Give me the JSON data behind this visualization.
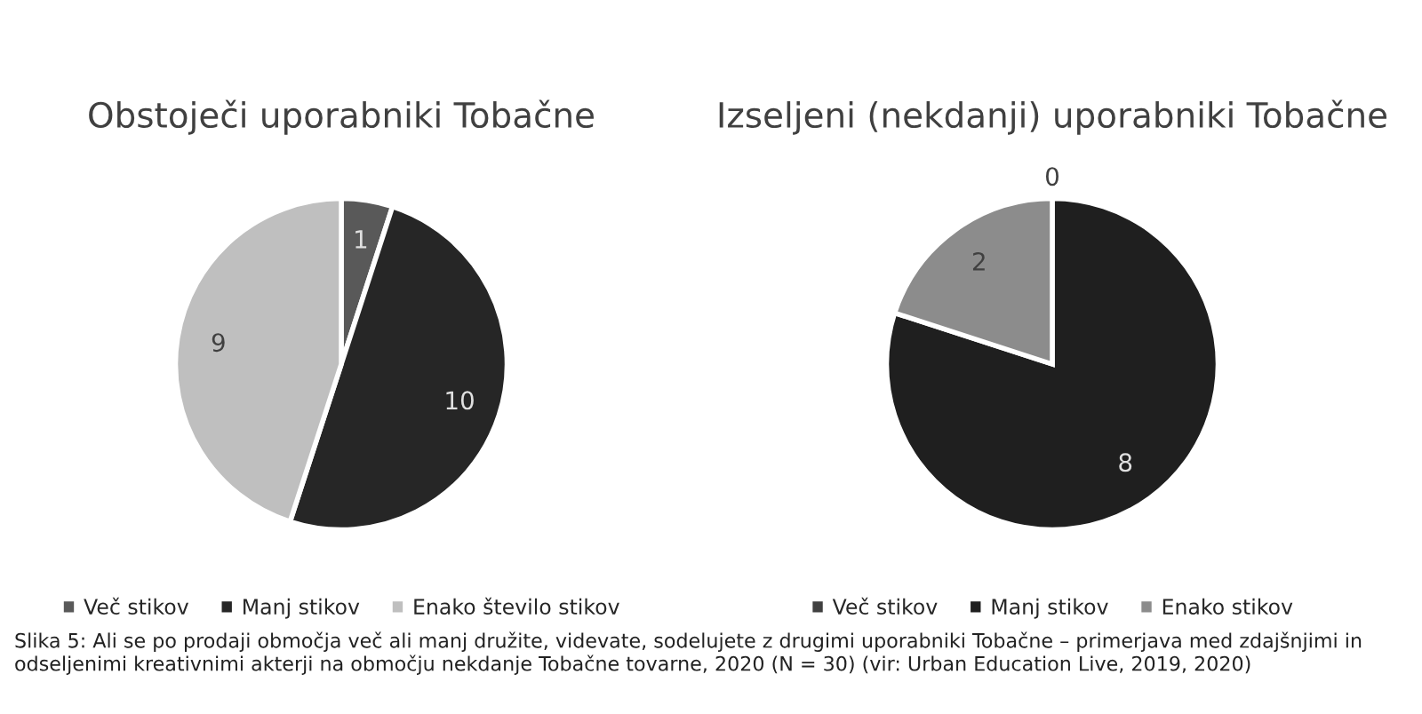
{
  "chart_data": [
    {
      "type": "pie",
      "title": "Obstoječi uporabniki Tobačne",
      "categories": [
        "Več stikov",
        "Manj stikov",
        "Enako število stikov"
      ],
      "values": [
        1,
        10,
        9
      ],
      "colors": [
        "#595959",
        "#262626",
        "#bfbfbf"
      ],
      "data_labels": true,
      "legend": "bottom",
      "annotations": [
        "Slika 5: Ali se po prodaji območja več ali manj družite, videvate, sodelujete z drugimi uporabniki Tobačne – primerjava med zdajšnjimi in odseljenimi kreativnimi akterji na območju nekdanje Tobačne tovarne, 2020 (N = 30) (vir: Urban Education Live, 2019, 2020)"
      ]
    },
    {
      "type": "pie",
      "title": "Izseljeni (nekdanji) uporabniki Tobačne",
      "categories": [
        "Več stikov",
        "Manj stikov",
        "Enako stikov"
      ],
      "values": [
        0,
        8,
        2
      ],
      "colors": [
        "#404040",
        "#1f1f1f",
        "#8c8c8c"
      ],
      "value_labels": [
        "0",
        "8",
        "2"
      ],
      "legend": "bottom"
    }
  ]
}
